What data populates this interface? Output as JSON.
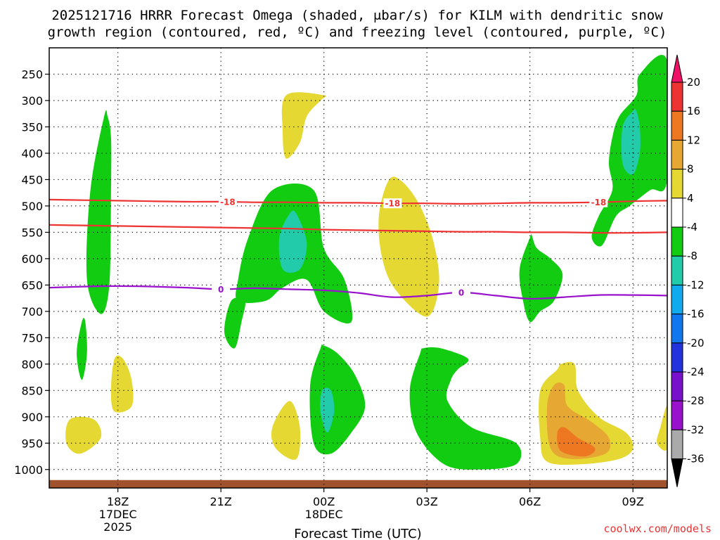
{
  "chart_data": {
    "type": "contour",
    "title_line1": "2025121716 HRRR Forecast Omega (shaded, μbar/s) for KILM with dendritic snow",
    "title_line2": "growth region (contoured, red, ºC) and freezing level (contoured, purple, ºC)",
    "xlabel": "Forecast Time (UTC)",
    "credit": "coolwx.com/models",
    "x_ticks": [
      {
        "hour": 18,
        "l1": "18Z",
        "l2": "17DEC",
        "l3": "2025"
      },
      {
        "hour": 21,
        "l1": "21Z",
        "l2": "",
        "l3": ""
      },
      {
        "hour": 24,
        "l1": "00Z",
        "l2": "18DEC",
        "l3": ""
      },
      {
        "hour": 27,
        "l1": "03Z",
        "l2": "",
        "l3": ""
      },
      {
        "hour": 30,
        "l1": "06Z",
        "l2": "",
        "l3": ""
      },
      {
        "hour": 33,
        "l1": "09Z",
        "l2": "",
        "l3": ""
      }
    ],
    "x_range_hours": [
      16,
      34
    ],
    "y_range_mb": [
      1035,
      200
    ],
    "y_ticks": [
      250,
      300,
      350,
      400,
      450,
      500,
      550,
      600,
      650,
      700,
      750,
      800,
      850,
      900,
      950,
      1000
    ],
    "colorbar": {
      "labels": [
        "20",
        "16",
        "12",
        "8",
        "4",
        "-4",
        "-8",
        "-12",
        "-16",
        "-20",
        "-24",
        "-28",
        "-32",
        "-36"
      ],
      "colors": [
        "#ee1166",
        "#ee3333",
        "#ee7722",
        "#e6a833",
        "#e6d833",
        "#ffffff",
        "#11cc11",
        "#22ccaa",
        "#11aaee",
        "#1177ee",
        "#2233dd",
        "#7711cc",
        "#9911cc",
        "#aaaaaa",
        "#000000"
      ]
    },
    "contour_lines": [
      {
        "name": "dgz-upper",
        "label": "-18",
        "color": "#ee3333",
        "points": [
          [
            16,
            488
          ],
          [
            17,
            489
          ],
          [
            18,
            490
          ],
          [
            19,
            491
          ],
          [
            20,
            492
          ],
          [
            21,
            492
          ],
          [
            22,
            493
          ],
          [
            23,
            493
          ],
          [
            24,
            494
          ],
          [
            25,
            494
          ],
          [
            26,
            495
          ],
          [
            27,
            495
          ],
          [
            28,
            496
          ],
          [
            29,
            495
          ],
          [
            30,
            494
          ],
          [
            31,
            494
          ],
          [
            32,
            493
          ],
          [
            33,
            491
          ],
          [
            34,
            490
          ]
        ],
        "label_hours": [
          21.2,
          26,
          32
        ]
      },
      {
        "name": "dgz-lower",
        "label": "",
        "color": "#ee3333",
        "points": [
          [
            16,
            536
          ],
          [
            17,
            537
          ],
          [
            18,
            538
          ],
          [
            19,
            539
          ],
          [
            20,
            540
          ],
          [
            21,
            541
          ],
          [
            22,
            542
          ],
          [
            23,
            543
          ],
          [
            24,
            545
          ],
          [
            25,
            546
          ],
          [
            26,
            547
          ],
          [
            27,
            548
          ],
          [
            28,
            549
          ],
          [
            29,
            549
          ],
          [
            30,
            550
          ],
          [
            31,
            550
          ],
          [
            32,
            551
          ],
          [
            33,
            551
          ],
          [
            34,
            550
          ]
        ],
        "label_hours": []
      },
      {
        "name": "freezing-level",
        "label": "0",
        "color": "#9911cc",
        "points": [
          [
            16,
            655
          ],
          [
            17,
            653
          ],
          [
            18,
            652
          ],
          [
            19,
            653
          ],
          [
            20,
            655
          ],
          [
            21,
            658
          ],
          [
            22,
            656
          ],
          [
            23,
            658
          ],
          [
            24,
            660
          ],
          [
            25,
            665
          ],
          [
            26,
            673
          ],
          [
            27,
            670
          ],
          [
            28,
            664
          ],
          [
            29,
            670
          ],
          [
            30,
            676
          ],
          [
            31,
            673
          ],
          [
            32,
            669
          ],
          [
            33,
            669
          ],
          [
            34,
            670
          ]
        ],
        "label_hours": [
          21,
          28
        ]
      }
    ],
    "shaded_regions": [
      {
        "name": "omega-neg8-0",
        "color": "#11cc11",
        "points": [
          [
            17.6,
            330
          ],
          [
            17.2,
            470
          ],
          [
            17.1,
            640
          ],
          [
            17.5,
            705
          ],
          [
            17.75,
            650
          ],
          [
            17.8,
            470
          ],
          [
            17.8,
            370
          ],
          [
            17.7,
            330
          ]
        ]
      },
      {
        "name": "omega-neg8-1",
        "color": "#11cc11",
        "points": [
          [
            22.5,
            470
          ],
          [
            21.8,
            560
          ],
          [
            21.5,
            640
          ],
          [
            21.5,
            680
          ],
          [
            22.3,
            680
          ],
          [
            22.8,
            655
          ],
          [
            23.5,
            640
          ],
          [
            24,
            700
          ],
          [
            24.8,
            720
          ],
          [
            24.6,
            640
          ],
          [
            24,
            580
          ],
          [
            23.7,
            470
          ]
        ]
      },
      {
        "name": "omega-neg12-1",
        "color": "#22ccaa",
        "points": [
          [
            23.0,
            515
          ],
          [
            22.7,
            560
          ],
          [
            22.8,
            620
          ],
          [
            23.3,
            620
          ],
          [
            23.5,
            570
          ],
          [
            23.2,
            515
          ]
        ]
      },
      {
        "name": "omega-neg8-2",
        "color": "#11cc11",
        "points": [
          [
            21.3,
            680
          ],
          [
            21.1,
            740
          ],
          [
            21.4,
            770
          ],
          [
            21.6,
            720
          ],
          [
            21.7,
            680
          ]
        ]
      },
      {
        "name": "omega-neg8-3",
        "color": "#11cc11",
        "points": [
          [
            16.95,
            720
          ],
          [
            16.8,
            780
          ],
          [
            16.95,
            830
          ],
          [
            17.1,
            780
          ],
          [
            17.05,
            720
          ]
        ]
      },
      {
        "name": "omega-neg8-4",
        "color": "#11cc11",
        "points": [
          [
            23.9,
            770
          ],
          [
            23.6,
            840
          ],
          [
            23.7,
            950
          ],
          [
            24.2,
            970
          ],
          [
            24.8,
            930
          ],
          [
            25.2,
            880
          ],
          [
            24.9,
            820
          ],
          [
            24.4,
            780
          ],
          [
            24,
            765
          ]
        ]
      },
      {
        "name": "omega-neg12-4",
        "color": "#22ccaa",
        "points": [
          [
            23.95,
            850
          ],
          [
            23.9,
            890
          ],
          [
            24.1,
            930
          ],
          [
            24.3,
            890
          ],
          [
            24.2,
            850
          ]
        ]
      },
      {
        "name": "omega-neg8-5",
        "color": "#11cc11",
        "points": [
          [
            26.8,
            780
          ],
          [
            26.5,
            850
          ],
          [
            26.7,
            930
          ],
          [
            27.5,
            990
          ],
          [
            28.5,
            1000
          ],
          [
            29.6,
            990
          ],
          [
            29.6,
            950
          ],
          [
            28.3,
            920
          ],
          [
            27.6,
            870
          ],
          [
            27.7,
            830
          ],
          [
            27.9,
            810
          ],
          [
            28.2,
            790
          ],
          [
            27.4,
            770
          ],
          [
            26.9,
            770
          ]
        ]
      },
      {
        "name": "omega-neg8-6",
        "color": "#11cc11",
        "points": [
          [
            30.0,
            560
          ],
          [
            29.7,
            620
          ],
          [
            29.8,
            680
          ],
          [
            30.0,
            720
          ],
          [
            30.3,
            700
          ],
          [
            30.7,
            680
          ],
          [
            30.95,
            630
          ],
          [
            30.6,
            600
          ],
          [
            30.2,
            580
          ],
          [
            30.05,
            555
          ]
        ]
      },
      {
        "name": "omega-neg8-7",
        "color": "#11cc11",
        "points": [
          [
            34,
            225
          ],
          [
            33.2,
            250
          ],
          [
            33.1,
            290
          ],
          [
            32.6,
            330
          ],
          [
            32.4,
            370
          ],
          [
            32.3,
            420
          ],
          [
            32.4,
            470
          ],
          [
            32.0,
            520
          ],
          [
            31.8,
            560
          ],
          [
            32.1,
            575
          ],
          [
            32.5,
            520
          ],
          [
            32.9,
            500
          ],
          [
            33.5,
            470
          ],
          [
            34,
            450
          ]
        ]
      },
      {
        "name": "omega-neg12-7",
        "color": "#22ccaa",
        "points": [
          [
            33.0,
            320
          ],
          [
            32.7,
            350
          ],
          [
            32.7,
            420
          ],
          [
            33.0,
            440
          ],
          [
            33.2,
            400
          ],
          [
            33.2,
            350
          ],
          [
            33.1,
            320
          ]
        ]
      },
      {
        "name": "omega-pos4-1",
        "color": "#e6d833",
        "points": [
          [
            22.9,
            290
          ],
          [
            22.8,
            360
          ],
          [
            22.9,
            410
          ],
          [
            23.3,
            380
          ],
          [
            23.5,
            330
          ],
          [
            23.9,
            300
          ],
          [
            24,
            290
          ]
        ]
      },
      {
        "name": "omega-pos4-2",
        "color": "#e6d833",
        "points": [
          [
            25.9,
            450
          ],
          [
            25.6,
            520
          ],
          [
            25.7,
            600
          ],
          [
            26.1,
            660
          ],
          [
            27.0,
            710
          ],
          [
            27.35,
            650
          ],
          [
            27.2,
            570
          ],
          [
            26.8,
            500
          ],
          [
            26.3,
            455
          ]
        ]
      },
      {
        "name": "omega-pos4-3",
        "color": "#e6d833",
        "points": [
          [
            17.9,
            790
          ],
          [
            17.8,
            850
          ],
          [
            17.9,
            890
          ],
          [
            18.4,
            880
          ],
          [
            18.4,
            830
          ],
          [
            18.15,
            790
          ]
        ]
      },
      {
        "name": "omega-pos4-4",
        "color": "#e6d833",
        "points": [
          [
            16.6,
            905
          ],
          [
            16.5,
            950
          ],
          [
            16.9,
            970
          ],
          [
            17.5,
            940
          ],
          [
            17.3,
            905
          ]
        ]
      },
      {
        "name": "omega-pos4-5",
        "color": "#e6d833",
        "points": [
          [
            23.0,
            870
          ],
          [
            22.5,
            920
          ],
          [
            22.6,
            960
          ],
          [
            23.2,
            980
          ],
          [
            23.3,
            920
          ]
        ]
      },
      {
        "name": "omega-pos4-6",
        "color": "#e6d833",
        "points": [
          [
            30.8,
            810
          ],
          [
            30.3,
            850
          ],
          [
            30.3,
            940
          ],
          [
            30.5,
            985
          ],
          [
            31.5,
            990
          ],
          [
            32.6,
            980
          ],
          [
            33.0,
            960
          ],
          [
            32.8,
            930
          ],
          [
            32.0,
            900
          ],
          [
            31.4,
            850
          ],
          [
            31.3,
            800
          ],
          [
            30.9,
            800
          ]
        ]
      },
      {
        "name": "omega-pos8-6",
        "color": "#e6a833",
        "points": [
          [
            30.7,
            840
          ],
          [
            30.5,
            880
          ],
          [
            30.6,
            960
          ],
          [
            31.2,
            980
          ],
          [
            32.2,
            970
          ],
          [
            32.3,
            940
          ],
          [
            31.8,
            910
          ],
          [
            31.1,
            880
          ],
          [
            31.0,
            840
          ]
        ]
      },
      {
        "name": "omega-pos12-6",
        "color": "#ee7722",
        "points": [
          [
            30.8,
            930
          ],
          [
            30.9,
            965
          ],
          [
            31.6,
            975
          ],
          [
            31.9,
            960
          ],
          [
            31.4,
            940
          ],
          [
            31.0,
            920
          ]
        ]
      },
      {
        "name": "omega-pos4-7",
        "color": "#e6d833",
        "points": [
          [
            34,
            880
          ],
          [
            33.8,
            920
          ],
          [
            33.7,
            950
          ],
          [
            34,
            960
          ]
        ]
      }
    ]
  }
}
